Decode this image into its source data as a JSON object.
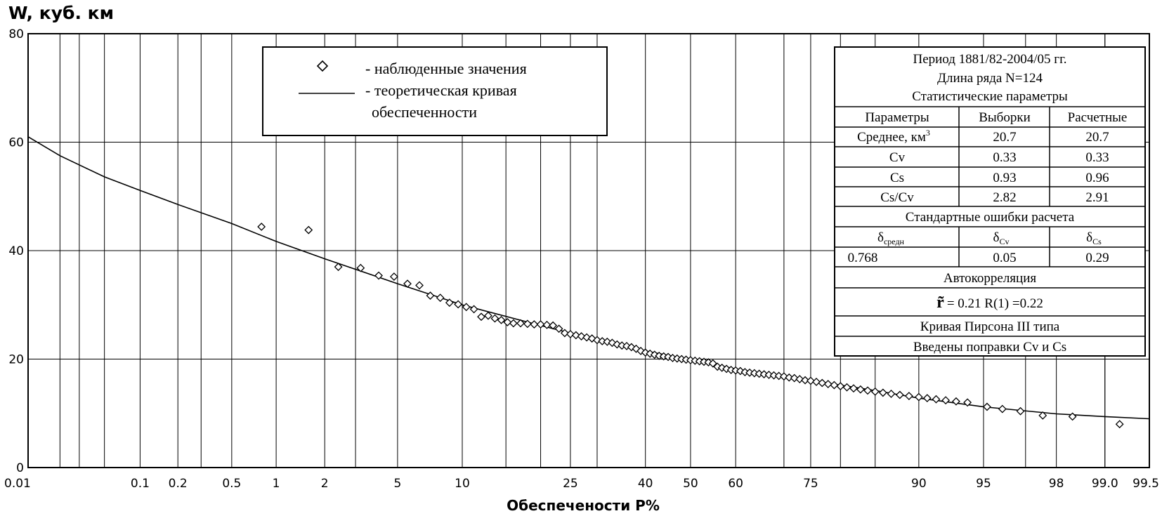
{
  "chart_data": {
    "type": "scatter",
    "ylabel": "W, куб. км",
    "xlabel": "Обеспечености  P%",
    "ylim": [
      0,
      80
    ],
    "yticks": [
      0,
      20,
      40,
      60,
      80
    ],
    "xticks": [
      "0.01",
      "0.1",
      "0.2",
      "0.5",
      "1",
      "2",
      "5",
      "10",
      "25",
      "40",
      "50",
      "60",
      "75",
      "90",
      "95",
      "98",
      "99.0",
      "99.5"
    ],
    "xtick_values": [
      0.01,
      0.1,
      0.2,
      0.5,
      1,
      2,
      5,
      10,
      25,
      40,
      50,
      60,
      75,
      90,
      95,
      98,
      99.0,
      99.5
    ],
    "minor_x_gridlines": [
      0.02,
      0.03,
      0.05,
      0.3,
      3,
      15,
      20,
      30,
      70,
      80,
      85,
      97,
      99
    ],
    "legend": {
      "position": "top-center",
      "items": [
        {
          "marker": "diamond",
          "label": "- наблюденные значения"
        },
        {
          "marker": "line",
          "label": "- теоретическая кривая",
          "label2": "обеспеченности"
        }
      ]
    },
    "series": [
      {
        "name": "наблюденные значения",
        "kind": "scatter",
        "points": [
          [
            0.8,
            44.4
          ],
          [
            1.6,
            43.8
          ],
          [
            2.4,
            37.0
          ],
          [
            3.2,
            36.8
          ],
          [
            4.0,
            35.4
          ],
          [
            4.8,
            35.2
          ],
          [
            5.6,
            33.9
          ],
          [
            6.4,
            33.6
          ],
          [
            7.2,
            31.7
          ],
          [
            8.0,
            31.3
          ],
          [
            8.8,
            30.4
          ],
          [
            9.6,
            30.1
          ],
          [
            10.4,
            29.6
          ],
          [
            11.2,
            29.2
          ],
          [
            12.0,
            27.8
          ],
          [
            12.8,
            28.0
          ],
          [
            13.6,
            27.5
          ],
          [
            14.4,
            27.2
          ],
          [
            15.2,
            26.8
          ],
          [
            16.0,
            26.6
          ],
          [
            17.0,
            26.6
          ],
          [
            18.0,
            26.5
          ],
          [
            19.0,
            26.4
          ],
          [
            20.0,
            26.4
          ],
          [
            21.0,
            26.3
          ],
          [
            22.0,
            26.2
          ],
          [
            23.0,
            25.6
          ],
          [
            24.0,
            24.8
          ],
          [
            25.0,
            24.6
          ],
          [
            26.0,
            24.4
          ],
          [
            27.0,
            24.2
          ],
          [
            28.0,
            24.0
          ],
          [
            29.0,
            23.8
          ],
          [
            30.0,
            23.5
          ],
          [
            31.0,
            23.3
          ],
          [
            32.0,
            23.2
          ],
          [
            33.0,
            23.0
          ],
          [
            34.0,
            22.7
          ],
          [
            35.0,
            22.5
          ],
          [
            36.0,
            22.4
          ],
          [
            37.0,
            22.2
          ],
          [
            38.0,
            21.9
          ],
          [
            39.0,
            21.5
          ],
          [
            40.0,
            21.2
          ],
          [
            41.0,
            21.0
          ],
          [
            42.0,
            20.8
          ],
          [
            43.0,
            20.6
          ],
          [
            44.0,
            20.5
          ],
          [
            45.0,
            20.4
          ],
          [
            46.0,
            20.2
          ],
          [
            47.0,
            20.1
          ],
          [
            48.0,
            20.0
          ],
          [
            49.0,
            19.9
          ],
          [
            50.0,
            19.8
          ],
          [
            51.0,
            19.7
          ],
          [
            52.0,
            19.6
          ],
          [
            53.0,
            19.5
          ],
          [
            54.0,
            19.4
          ],
          [
            55.0,
            19.2
          ],
          [
            56.0,
            18.6
          ],
          [
            57.0,
            18.4
          ],
          [
            58.0,
            18.2
          ],
          [
            59.0,
            18.0
          ],
          [
            60.0,
            17.9
          ],
          [
            61.0,
            17.8
          ],
          [
            62.0,
            17.6
          ],
          [
            63.0,
            17.5
          ],
          [
            64.0,
            17.4
          ],
          [
            65.0,
            17.3
          ],
          [
            66.0,
            17.2
          ],
          [
            67.0,
            17.1
          ],
          [
            68.0,
            17.0
          ],
          [
            69.0,
            16.9
          ],
          [
            70.0,
            16.8
          ],
          [
            71.0,
            16.6
          ],
          [
            72.0,
            16.5
          ],
          [
            73.0,
            16.3
          ],
          [
            74.0,
            16.1
          ],
          [
            75.0,
            16.0
          ],
          [
            76.0,
            15.8
          ],
          [
            77.0,
            15.6
          ],
          [
            78.0,
            15.4
          ],
          [
            79.0,
            15.2
          ],
          [
            80.0,
            15.0
          ],
          [
            81.0,
            14.8
          ],
          [
            82.0,
            14.6
          ],
          [
            83.0,
            14.4
          ],
          [
            84.0,
            14.2
          ],
          [
            85.0,
            14.0
          ],
          [
            86.0,
            13.8
          ],
          [
            87.0,
            13.6
          ],
          [
            88.0,
            13.4
          ],
          [
            89.0,
            13.2
          ],
          [
            90.0,
            13.0
          ],
          [
            90.8,
            12.8
          ],
          [
            91.6,
            12.6
          ],
          [
            92.4,
            12.4
          ],
          [
            93.2,
            12.2
          ],
          [
            94.0,
            12.0
          ],
          [
            95.2,
            11.2
          ],
          [
            96.0,
            10.8
          ],
          [
            96.8,
            10.4
          ],
          [
            97.6,
            9.6
          ],
          [
            98.4,
            9.4
          ],
          [
            99.2,
            8.0
          ]
        ]
      },
      {
        "name": "теоретическая кривая обеспеченности",
        "kind": "line",
        "points": [
          [
            0.01,
            61.0
          ],
          [
            0.02,
            57.5
          ],
          [
            0.05,
            53.6
          ],
          [
            0.1,
            51.1
          ],
          [
            0.2,
            48.5
          ],
          [
            0.5,
            45.0
          ],
          [
            1,
            41.7
          ],
          [
            2,
            38.5
          ],
          [
            5,
            33.9
          ],
          [
            10,
            30.0
          ],
          [
            20,
            26.2
          ],
          [
            25,
            24.8
          ],
          [
            30,
            23.6
          ],
          [
            40,
            21.5
          ],
          [
            50,
            19.9
          ],
          [
            60,
            18.2
          ],
          [
            70,
            16.7
          ],
          [
            75,
            16.0
          ],
          [
            80,
            15.2
          ],
          [
            85,
            14.2
          ],
          [
            90,
            12.8
          ],
          [
            95,
            11.2
          ],
          [
            98,
            9.9
          ],
          [
            99,
            9.4
          ],
          [
            99.5,
            9.0
          ]
        ]
      }
    ]
  },
  "stats_table": {
    "header_lines": [
      "Период 1881/82-2004/05 гг.",
      "Длина ряда N=124",
      "Статистические параметры"
    ],
    "columns": [
      "Параметры",
      "Выборки",
      "Расчетные"
    ],
    "rows": [
      {
        "name": "Среднее, км",
        "name_sup": "3",
        "sample": "20.7",
        "calc": "20.7"
      },
      {
        "name": "Cv",
        "name_sup": "",
        "sample": "0.33",
        "calc": "0.33"
      },
      {
        "name": "Cs",
        "name_sup": "",
        "sample": "0.93",
        "calc": "0.96"
      },
      {
        "name": "Cs/Cv",
        "name_sup": "",
        "sample": "2.82",
        "calc": "2.91"
      }
    ],
    "errors_title": "Стандартные ошибки расчета",
    "error_headers": [
      {
        "sym": "δ",
        "sub": "средн"
      },
      {
        "sym": "δ",
        "sub": "Cv"
      },
      {
        "sym": "δ",
        "sub": "Cs"
      }
    ],
    "error_values": [
      "0.768",
      "0.05",
      "0.29"
    ],
    "autocorr_title": "Автокорреляция",
    "autocorr_sym": "r̃",
    "autocorr_text": "= 0.21   R(1) =0.22",
    "curve_type": "Кривая Пирсона III типа",
    "corrections": "Введены поправки Cv и Cs"
  }
}
